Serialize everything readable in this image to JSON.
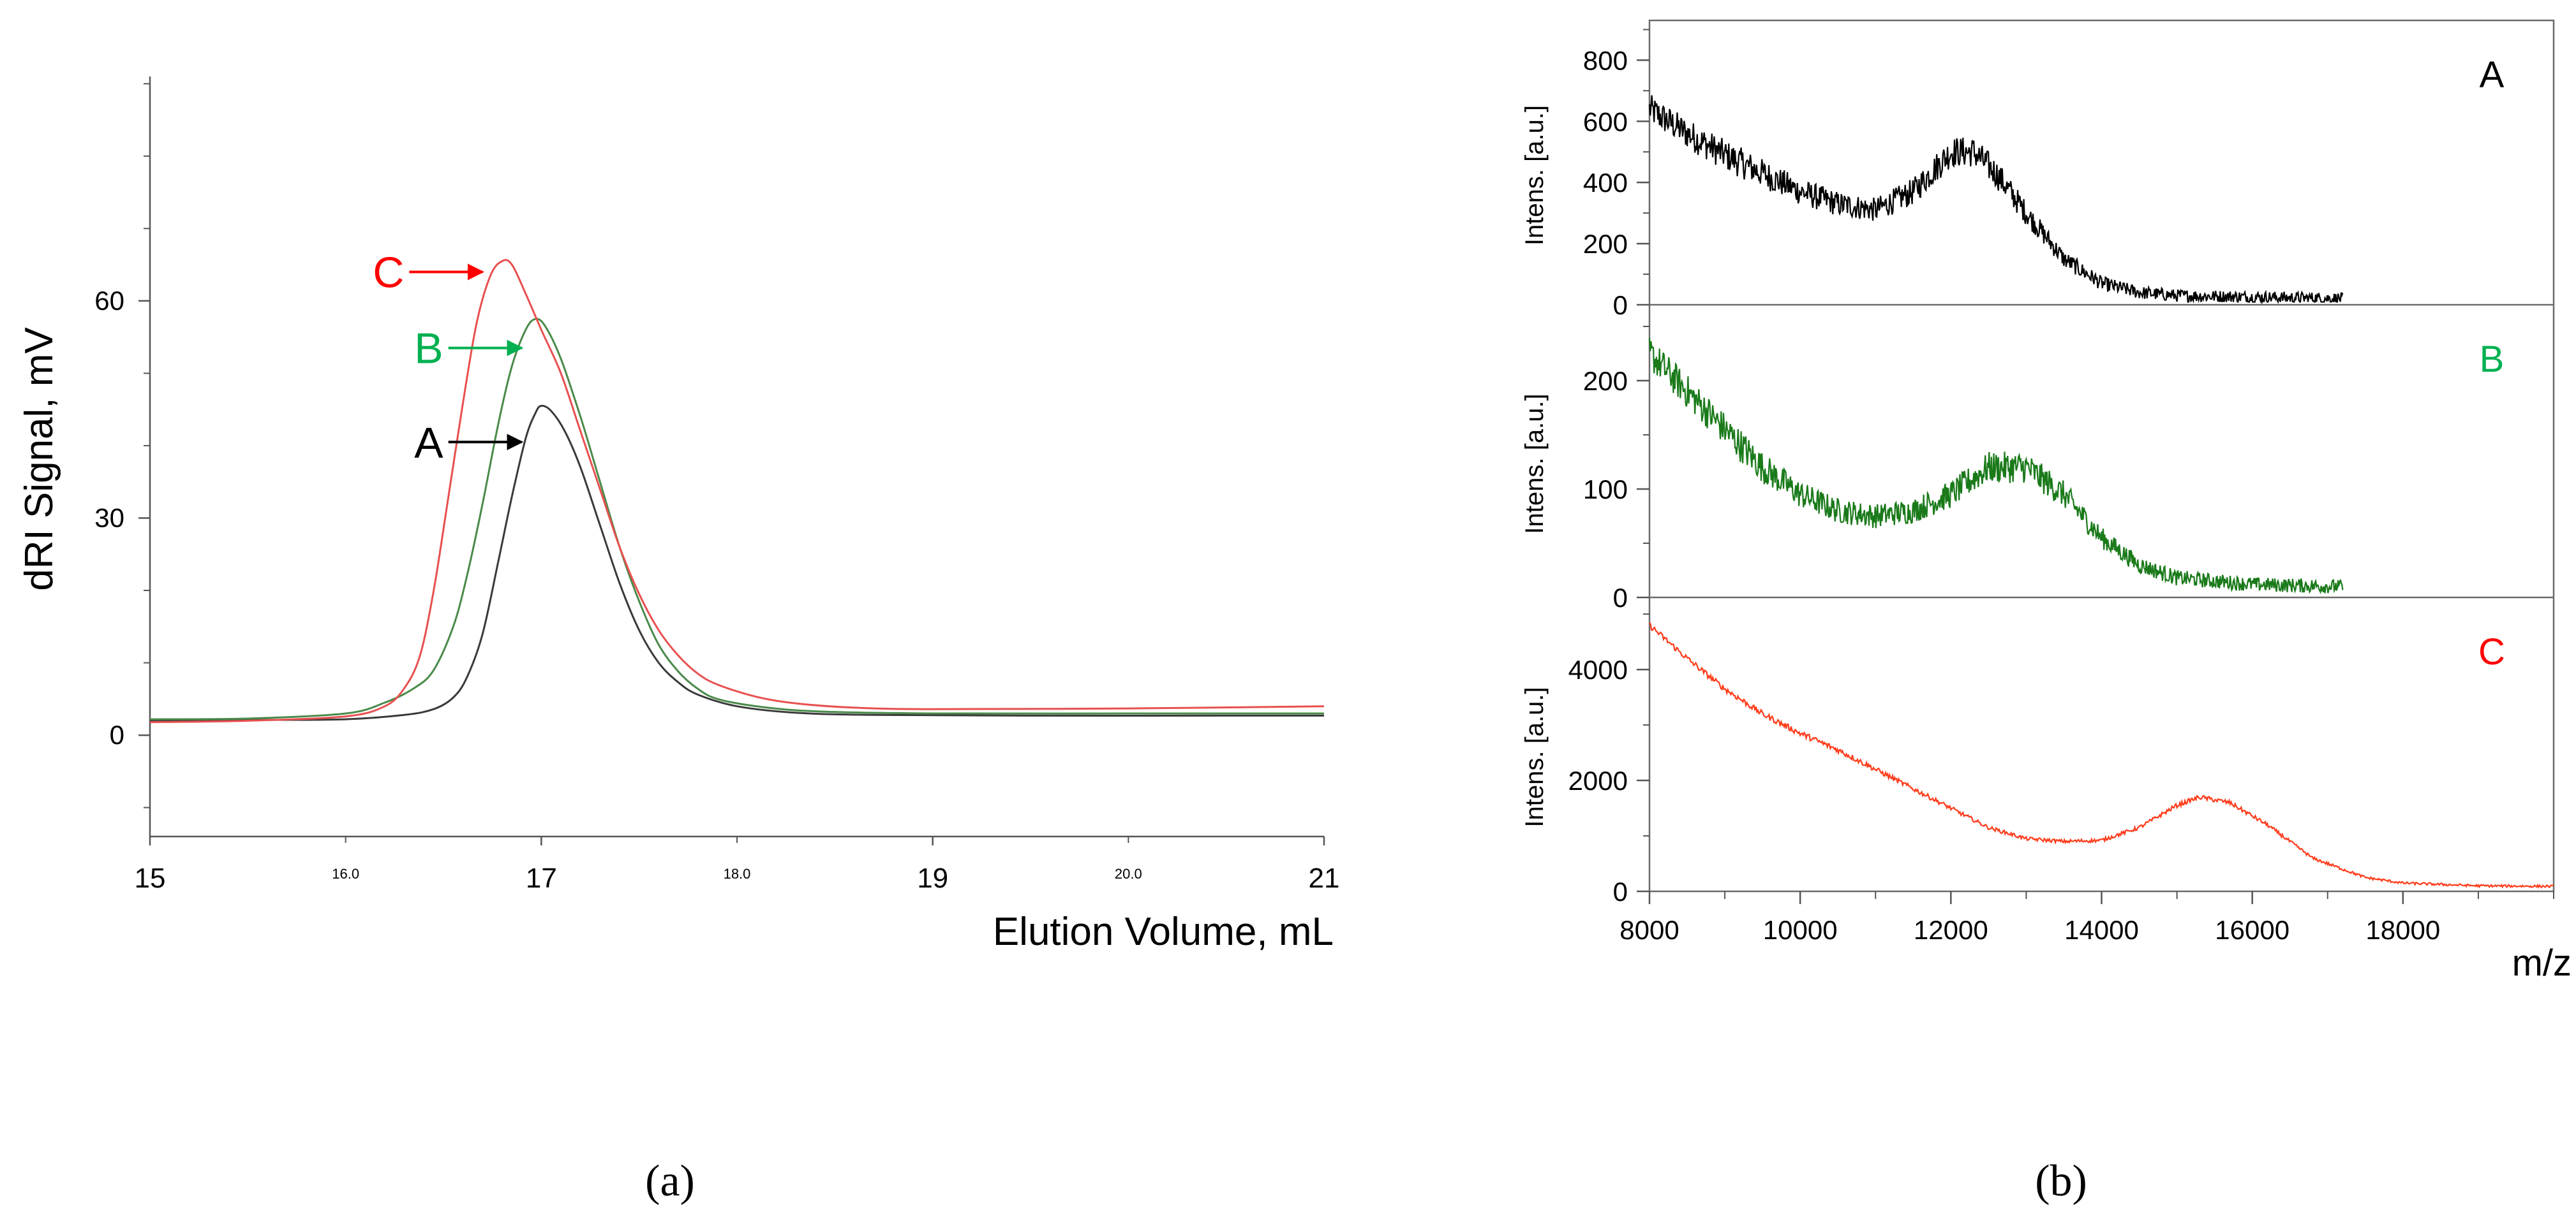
{
  "chart_data": [
    {
      "type": "line",
      "panel_label": "(a)",
      "title": "",
      "xlabel": "Elution Volume, mL",
      "ylabel": "dRI Signal, mV",
      "xlim": [
        15,
        21
      ],
      "ylim": [
        -14,
        91
      ],
      "x_major_ticks": [
        15,
        17,
        19,
        21
      ],
      "x_major_labels": [
        "15",
        "17",
        "19",
        "21"
      ],
      "x_minor_ticks": [
        16,
        18,
        20
      ],
      "x_minor_labels": [
        "16.0",
        "18.0",
        "20.0"
      ],
      "y_ticks": [
        0,
        30,
        60
      ],
      "y_tick_labels": [
        "0",
        "30",
        "60"
      ],
      "grid": false,
      "series": [
        {
          "name": "A",
          "color": "#3a3a3a",
          "points": [
            [
              15.0,
              2
            ],
            [
              15.5,
              2.1
            ],
            [
              16.0,
              2.2
            ],
            [
              16.3,
              2.8
            ],
            [
              16.45,
              3.6
            ],
            [
              16.55,
              5.2
            ],
            [
              16.62,
              8
            ],
            [
              16.7,
              14
            ],
            [
              16.78,
              24
            ],
            [
              16.85,
              33
            ],
            [
              16.92,
              41
            ],
            [
              16.97,
              44.5
            ],
            [
              17.0,
              45.5
            ],
            [
              17.05,
              44.8
            ],
            [
              17.12,
              42
            ],
            [
              17.2,
              37
            ],
            [
              17.3,
              29
            ],
            [
              17.4,
              21
            ],
            [
              17.5,
              14.5
            ],
            [
              17.6,
              10
            ],
            [
              17.7,
              7.3
            ],
            [
              17.8,
              5.6
            ],
            [
              18.0,
              4
            ],
            [
              18.3,
              3.1
            ],
            [
              18.7,
              2.8
            ],
            [
              19.5,
              2.7
            ],
            [
              20.5,
              2.7
            ],
            [
              21.0,
              2.7
            ]
          ]
        },
        {
          "name": "B",
          "color": "#4a8a4a",
          "points": [
            [
              15.0,
              2.2
            ],
            [
              15.5,
              2.3
            ],
            [
              16.0,
              3
            ],
            [
              16.2,
              4.5
            ],
            [
              16.35,
              6.5
            ],
            [
              16.45,
              9
            ],
            [
              16.55,
              15
            ],
            [
              16.62,
              22
            ],
            [
              16.7,
              32
            ],
            [
              16.78,
              43
            ],
            [
              16.85,
              51
            ],
            [
              16.92,
              56
            ],
            [
              16.97,
              57.5
            ],
            [
              17.02,
              56.5
            ],
            [
              17.1,
              52
            ],
            [
              17.2,
              44
            ],
            [
              17.3,
              35
            ],
            [
              17.4,
              26
            ],
            [
              17.5,
              18.5
            ],
            [
              17.6,
              12.5
            ],
            [
              17.7,
              8.8
            ],
            [
              17.8,
              6.4
            ],
            [
              17.9,
              5
            ],
            [
              18.1,
              4
            ],
            [
              18.4,
              3.3
            ],
            [
              19.0,
              3
            ],
            [
              20.0,
              3
            ],
            [
              21.0,
              3
            ]
          ]
        },
        {
          "name": "C",
          "color": "#e85050",
          "points": [
            [
              15.0,
              1.8
            ],
            [
              15.5,
              2
            ],
            [
              16.0,
              2.6
            ],
            [
              16.2,
              4
            ],
            [
              16.3,
              6.5
            ],
            [
              16.38,
              11
            ],
            [
              16.45,
              20
            ],
            [
              16.52,
              32
            ],
            [
              16.6,
              46
            ],
            [
              16.67,
              57
            ],
            [
              16.74,
              63.5
            ],
            [
              16.8,
              65.5
            ],
            [
              16.85,
              65
            ],
            [
              16.92,
              61
            ],
            [
              17.0,
              56
            ],
            [
              17.1,
              50
            ],
            [
              17.2,
              42
            ],
            [
              17.3,
              34
            ],
            [
              17.4,
              26
            ],
            [
              17.5,
              19.5
            ],
            [
              17.6,
              14.5
            ],
            [
              17.7,
              11
            ],
            [
              17.8,
              8.5
            ],
            [
              17.9,
              7
            ],
            [
              18.1,
              5.3
            ],
            [
              18.3,
              4.4
            ],
            [
              18.6,
              3.8
            ],
            [
              19.0,
              3.6
            ],
            [
              20.0,
              3.7
            ],
            [
              21.0,
              4
            ]
          ]
        }
      ],
      "annotations": [
        {
          "label": "A",
          "color": "#000000",
          "tip": [
            16.9,
            40.5
          ]
        },
        {
          "label": "B",
          "color": "#00b050",
          "tip": [
            16.9,
            53.5
          ]
        },
        {
          "label": "C",
          "color": "#ff0000",
          "tip": [
            16.7,
            64
          ]
        }
      ]
    },
    {
      "type": "line",
      "panel_label": "(b)",
      "title": "",
      "xlabel": "m/z",
      "xlim": [
        8000,
        20000
      ],
      "x_ticks": [
        8000,
        10000,
        12000,
        14000,
        16000,
        18000
      ],
      "x_tick_labels": [
        "8000",
        "10000",
        "12000",
        "14000",
        "16000",
        "18000"
      ],
      "grid": false,
      "panels": [
        {
          "label": "A",
          "label_color": "#000000",
          "color": "#000000",
          "ylabel": "Intens. [a.u.]",
          "ylim": [
            0,
            930
          ],
          "y_ticks": [
            0,
            200,
            400,
            600,
            800
          ],
          "y_tick_labels": [
            "0",
            "200",
            "400",
            "600",
            "800"
          ],
          "noise": 42,
          "x_end": 17200,
          "points": [
            [
              8000,
              640
            ],
            [
              8500,
              560
            ],
            [
              9000,
              490
            ],
            [
              9500,
              430
            ],
            [
              10000,
              370
            ],
            [
              10500,
              330
            ],
            [
              11000,
              310
            ],
            [
              11500,
              370
            ],
            [
              12000,
              500
            ],
            [
              12300,
              500
            ],
            [
              12600,
              430
            ],
            [
              13000,
              300
            ],
            [
              13500,
              150
            ],
            [
              14000,
              70
            ],
            [
              14500,
              40
            ],
            [
              15000,
              30
            ],
            [
              16000,
              25
            ],
            [
              17200,
              20
            ]
          ]
        },
        {
          "label": "B",
          "label_color": "#00b050",
          "color": "#1a7a1a",
          "ylabel": "Intens. [a.u.]",
          "ylim": [
            0,
            270
          ],
          "y_ticks": [
            0,
            100,
            200
          ],
          "y_tick_labels": [
            "0",
            "100",
            "200"
          ],
          "noise": 13,
          "x_end": 17200,
          "points": [
            [
              8000,
              225
            ],
            [
              8500,
              190
            ],
            [
              9000,
              155
            ],
            [
              9500,
              120
            ],
            [
              10000,
              95
            ],
            [
              10500,
              80
            ],
            [
              11000,
              75
            ],
            [
              11500,
              80
            ],
            [
              12000,
              95
            ],
            [
              12500,
              120
            ],
            [
              13000,
              120
            ],
            [
              13500,
              95
            ],
            [
              14000,
              55
            ],
            [
              14500,
              30
            ],
            [
              15000,
              18
            ],
            [
              16000,
              12
            ],
            [
              17200,
              10
            ]
          ]
        },
        {
          "label": "C",
          "label_color": "#ff0000",
          "color": "#ff3b1a",
          "ylabel": "Intens. [a.u.]",
          "ylim": [
            0,
            5300
          ],
          "y_ticks": [
            0,
            2000,
            4000
          ],
          "y_tick_labels": [
            "0",
            "2000",
            "4000"
          ],
          "noise": 45,
          "x_end": 20000,
          "points": [
            [
              8000,
              4800
            ],
            [
              8500,
              4200
            ],
            [
              9000,
              3650
            ],
            [
              9500,
              3200
            ],
            [
              10000,
              2850
            ],
            [
              10500,
              2550
            ],
            [
              11000,
              2200
            ],
            [
              11500,
              1850
            ],
            [
              12000,
              1500
            ],
            [
              12500,
              1150
            ],
            [
              13000,
              950
            ],
            [
              13500,
              900
            ],
            [
              14000,
              920
            ],
            [
              14500,
              1150
            ],
            [
              15000,
              1550
            ],
            [
              15300,
              1700
            ],
            [
              15700,
              1600
            ],
            [
              16200,
              1200
            ],
            [
              16800,
              600
            ],
            [
              17500,
              250
            ],
            [
              18000,
              150
            ],
            [
              19000,
              100
            ],
            [
              20000,
              90
            ]
          ]
        }
      ]
    }
  ]
}
